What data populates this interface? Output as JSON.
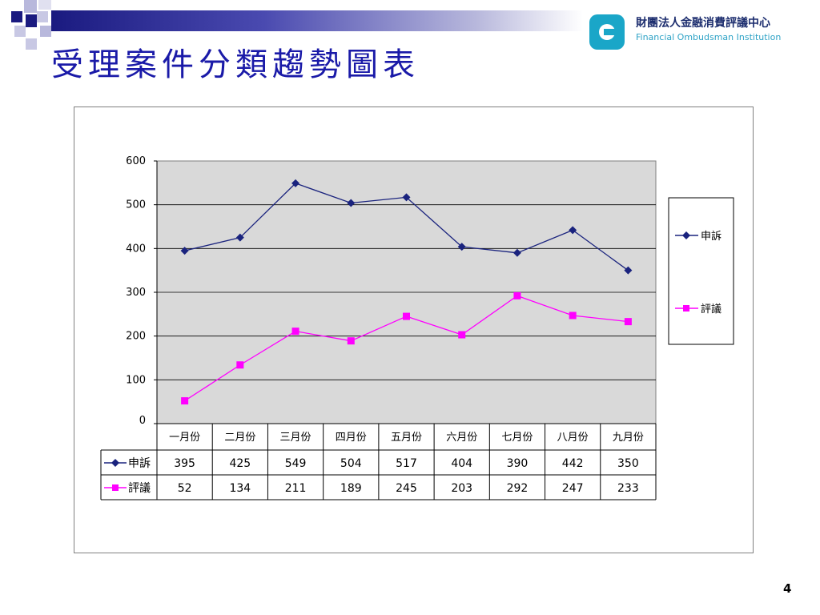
{
  "slide": {
    "title": "受理案件分類趨勢圖表",
    "page_number": "4"
  },
  "logo": {
    "name_zh": "財團法人金融消費評議中心",
    "name_en": "Financial Ombudsman Institution",
    "mark_color": "#1aa6c8"
  },
  "colors": {
    "title": "#1a1aa8",
    "series_1": "#1a237e",
    "series_2": "#ff00ff",
    "plot_bg": "#d9d9d9"
  },
  "chart_data": {
    "type": "line",
    "categories": [
      "一月份",
      "二月份",
      "三月份",
      "四月份",
      "五月份",
      "六月份",
      "七月份",
      "八月份",
      "九月份"
    ],
    "series": [
      {
        "name": "申訴",
        "values": [
          395,
          425,
          549,
          504,
          517,
          404,
          390,
          442,
          350
        ],
        "marker": "diamond"
      },
      {
        "name": "評議",
        "values": [
          52,
          134,
          211,
          189,
          245,
          203,
          292,
          247,
          233
        ],
        "marker": "square"
      }
    ],
    "yticks": [
      "0",
      "100",
      "200",
      "300",
      "400",
      "500",
      "600"
    ],
    "ylim": [
      0,
      600
    ],
    "grid": true,
    "legend": "right",
    "data_table": true
  }
}
